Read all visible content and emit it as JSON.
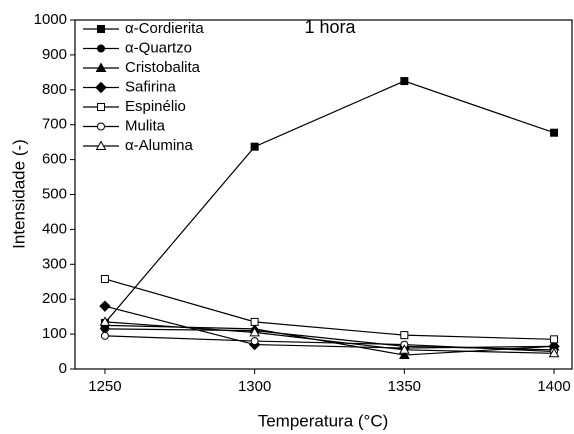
{
  "chart_data": {
    "type": "line",
    "annotation": "1 hora",
    "x_label": "Temperatura (°C)",
    "y_label": "Intensidade (-)",
    "x": [
      1250,
      1300,
      1350,
      1400
    ],
    "xlim": [
      1240,
      1406
    ],
    "xticks": [
      1250,
      1300,
      1350,
      1400
    ],
    "ylim": [
      0,
      1000
    ],
    "yticks": [
      0,
      100,
      200,
      300,
      400,
      500,
      600,
      700,
      800,
      900,
      1000
    ],
    "legend": "upper left",
    "series": [
      {
        "name": "α-Cordierita",
        "color": "#000000",
        "marker": "square-filled",
        "values": [
          132,
          637,
          825,
          677
        ]
      },
      {
        "name": "α-Quartzo",
        "color": "#000000",
        "marker": "circle-filled",
        "values": [
          115,
          110,
          65,
          55
        ]
      },
      {
        "name": "Cristobalita",
        "color": "#000000",
        "marker": "triangle-filled",
        "values": [
          125,
          115,
          40,
          65
        ]
      },
      {
        "name": "Safirina",
        "color": "#000000",
        "marker": "diamond-filled",
        "values": [
          180,
          70,
          60,
          65
        ]
      },
      {
        "name": "Espinélio",
        "color": "#000000",
        "marker": "square-open",
        "values": [
          258,
          135,
          97,
          85
        ]
      },
      {
        "name": "Mulita",
        "color": "#000000",
        "marker": "circle-open",
        "values": [
          95,
          80,
          70,
          50
        ]
      },
      {
        "name": "α-Alumina",
        "color": "#000000",
        "marker": "triangle-open",
        "values": [
          135,
          105,
          55,
          45
        ]
      }
    ]
  }
}
